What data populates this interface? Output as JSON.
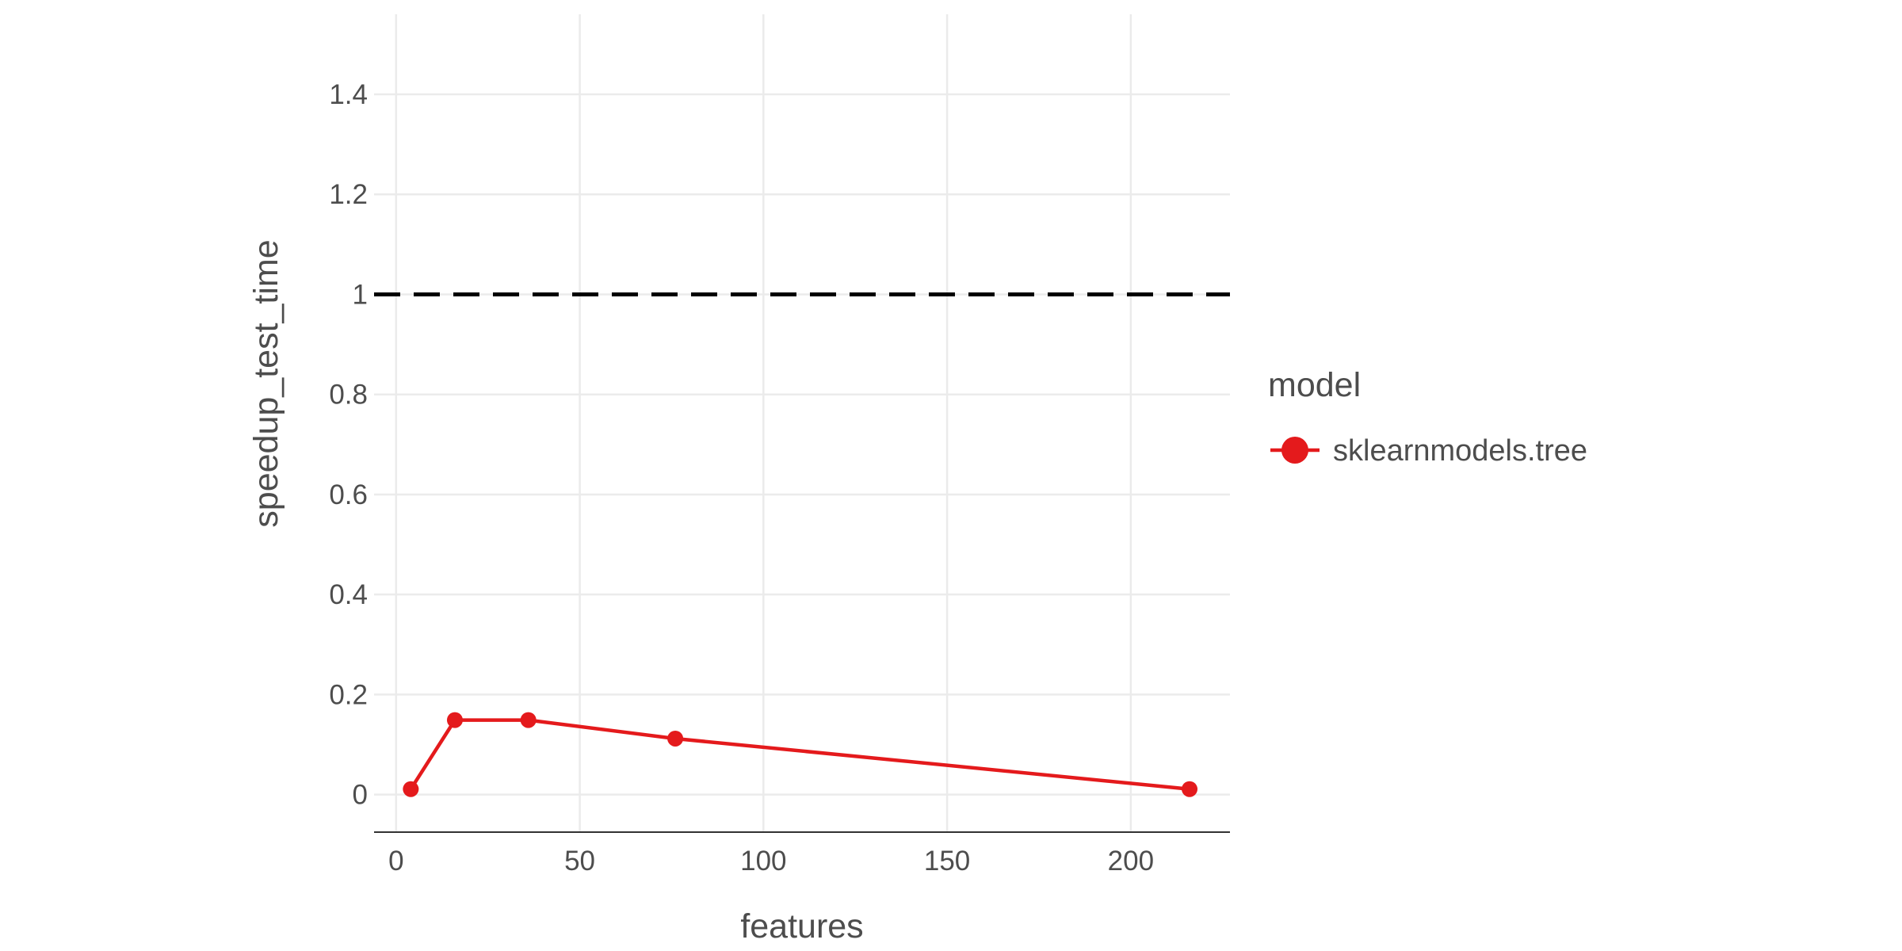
{
  "chart_data": {
    "type": "line",
    "title": "",
    "xlabel": "features",
    "ylabel": "speedup_test_time",
    "xlim": [
      -6,
      227
    ],
    "ylim": [
      -0.075,
      1.56
    ],
    "xticks": [
      0,
      50,
      100,
      150,
      200
    ],
    "xtick_labels": [
      "0",
      "50",
      "100",
      "150",
      "200"
    ],
    "yticks": [
      0,
      0.2,
      0.4,
      0.6,
      0.8,
      1,
      1.2,
      1.4
    ],
    "ytick_labels": [
      "0",
      "0.2",
      "0.4",
      "0.6",
      "0.8",
      "1",
      "1.2",
      "1.4"
    ],
    "grid": true,
    "reference_line": {
      "y": 1,
      "style": "dashed",
      "color": "#000000"
    },
    "legend": {
      "title": "model",
      "position": "right"
    },
    "series": [
      {
        "name": "sklearnmodels.tree",
        "color": "#e41a1c",
        "x": [
          4,
          16,
          36,
          76,
          216
        ],
        "y": [
          0.011,
          0.149,
          0.149,
          0.112,
          0.011
        ]
      }
    ]
  }
}
